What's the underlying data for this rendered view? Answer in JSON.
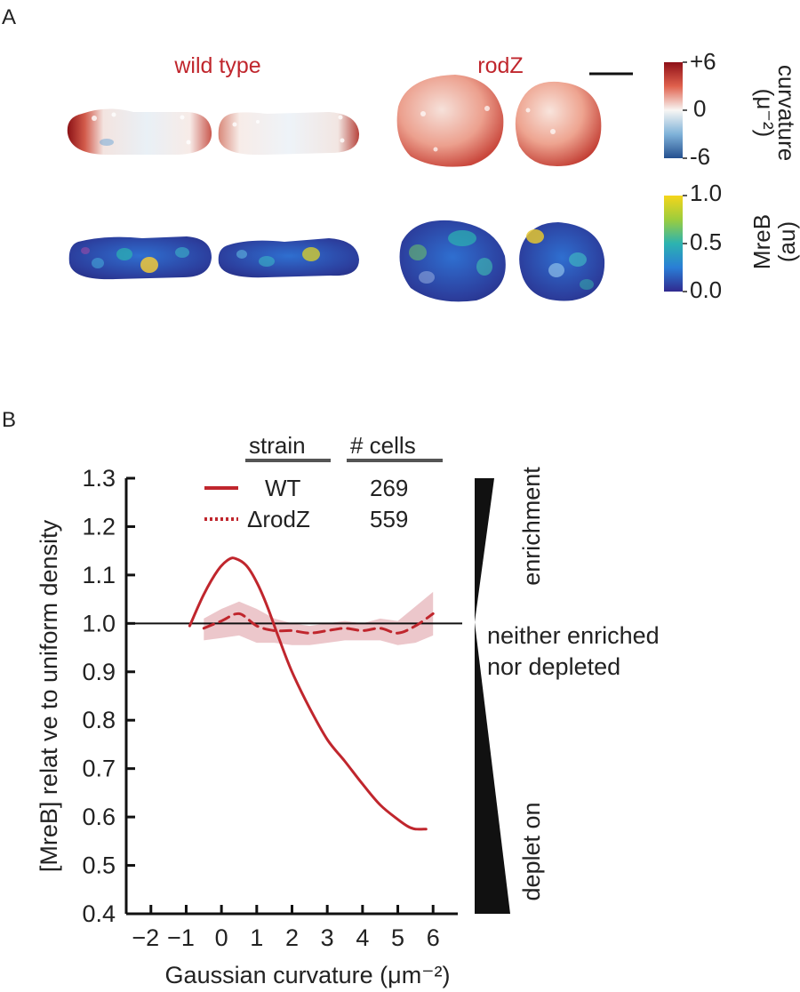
{
  "panel_a": {
    "label": "A",
    "strain_labels": [
      "wild type",
      "rodZ"
    ],
    "curvature_colorbar": {
      "title": "curvature",
      "unit": "(μ⁻²)",
      "ticks": [
        "+6",
        "0",
        "-6"
      ]
    },
    "mreb_colorbar": {
      "title": "MreB",
      "unit": "(au)",
      "ticks": [
        "1.0",
        "0.5",
        "0.0"
      ]
    }
  },
  "panel_b": {
    "label": "B"
  },
  "chart_data": {
    "type": "line",
    "xlabel": "Gaussian curvature (μm⁻²)",
    "ylabel": "[MreB] relat ve to uniform density",
    "xlim": [
      -2.7,
      6.7
    ],
    "ylim": [
      0.4,
      1.3
    ],
    "x_ticks": [
      -2,
      -1,
      0,
      1,
      2,
      3,
      4,
      5,
      6
    ],
    "y_ticks": [
      0.4,
      0.5,
      0.6,
      0.7,
      0.8,
      0.9,
      1.0,
      1.1,
      1.2,
      1.3
    ],
    "reference_line": 1.0,
    "legend": {
      "headers": [
        "strain",
        "# cells"
      ],
      "entries": [
        {
          "name": "WT",
          "cells": "269",
          "style": "solid"
        },
        {
          "name": "ΔrodZ",
          "cells": "559",
          "style": "dashed"
        }
      ]
    },
    "series": [
      {
        "name": "WT",
        "color": "#c0262d",
        "x": [
          -0.9,
          -0.5,
          -0.1,
          0.2,
          0.4,
          0.7,
          1.0,
          1.3,
          1.6,
          2.0,
          2.5,
          3.0,
          3.5,
          4.0,
          4.5,
          5.0,
          5.3,
          5.5,
          5.8
        ],
        "y": [
          0.995,
          1.06,
          1.11,
          1.132,
          1.134,
          1.12,
          1.085,
          1.035,
          0.975,
          0.9,
          0.825,
          0.76,
          0.715,
          0.668,
          0.625,
          0.595,
          0.58,
          0.575,
          0.575
        ]
      },
      {
        "name": "ΔrodZ",
        "color": "#c0262d",
        "x": [
          -0.5,
          0.0,
          0.5,
          1.0,
          1.5,
          2.0,
          2.5,
          3.0,
          3.5,
          4.0,
          4.5,
          5.0,
          5.5,
          6.0
        ],
        "y": [
          0.99,
          1.005,
          1.02,
          0.995,
          0.985,
          0.985,
          0.98,
          0.985,
          0.99,
          0.985,
          0.99,
          0.98,
          0.995,
          1.02
        ],
        "band_upper": [
          1.01,
          1.03,
          1.045,
          1.03,
          1.01,
          1.0,
          0.995,
          1.0,
          1.005,
          1.0,
          1.01,
          1.005,
          1.035,
          1.065
        ],
        "band_lower": [
          0.965,
          0.97,
          0.975,
          0.96,
          0.96,
          0.955,
          0.955,
          0.96,
          0.965,
          0.965,
          0.965,
          0.955,
          0.96,
          0.975
        ],
        "band_color": "#e6b4ba"
      }
    ],
    "side_scale": {
      "top": "enrichment",
      "middle": [
        "neither enriched",
        "nor depleted"
      ],
      "bottom": "deplet on"
    }
  }
}
